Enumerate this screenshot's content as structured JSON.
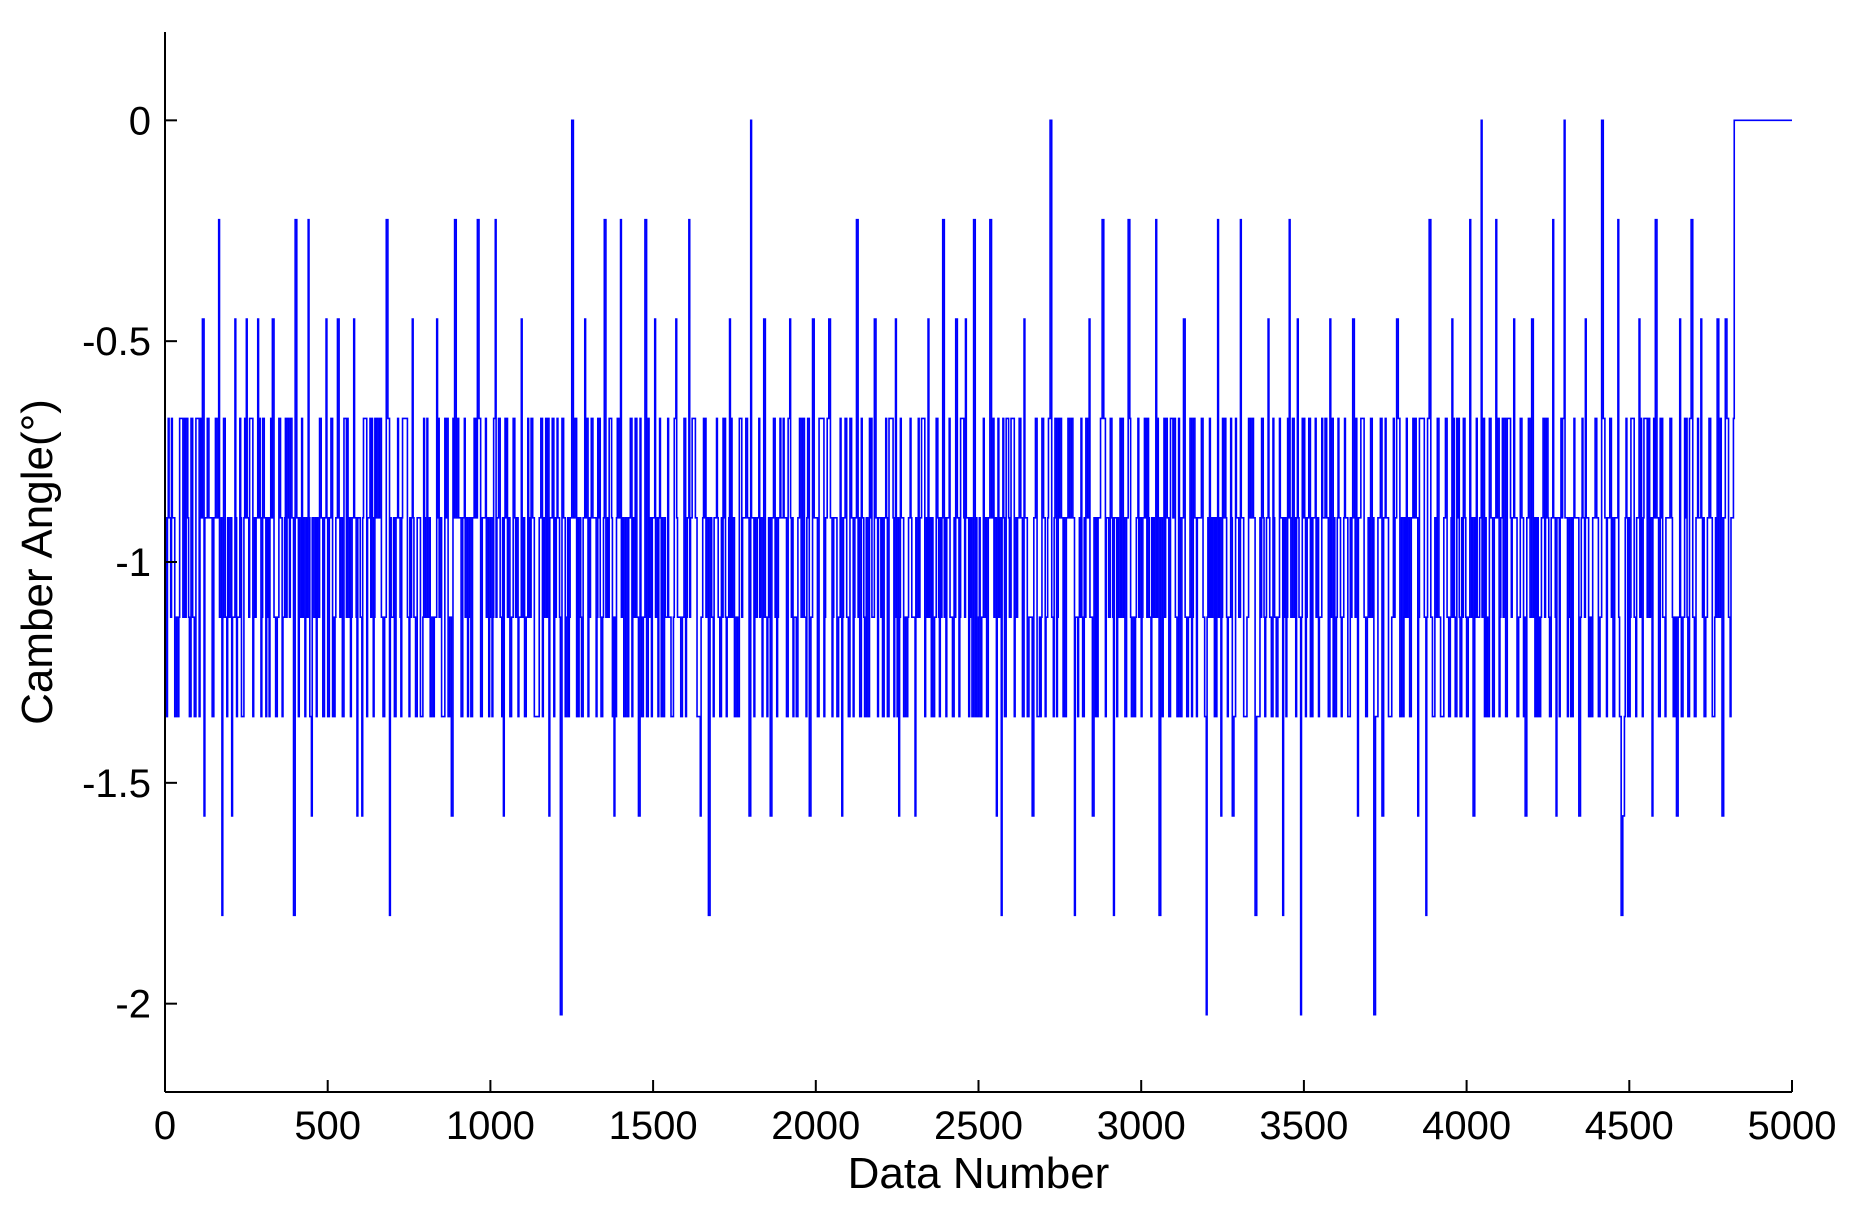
{
  "chart_data": {
    "type": "line",
    "title": "",
    "xlabel": "Data Number",
    "ylabel": "Camber Angle(°)",
    "xlim": [
      0,
      5000
    ],
    "ylim": [
      -2.2,
      0.2
    ],
    "xticks": [
      0,
      500,
      1000,
      1500,
      2000,
      2500,
      3000,
      3500,
      4000,
      4500,
      5000
    ],
    "yticks": [
      0,
      -0.5,
      -1,
      -1.5,
      -2
    ],
    "xtick_labels": [
      "0",
      "500",
      "1000",
      "1500",
      "2000",
      "2500",
      "3000",
      "3500",
      "4000",
      "4500",
      "5000"
    ],
    "ytick_labels": [
      "0",
      "-0.5",
      "-1",
      "-1.5",
      "-2"
    ],
    "grid": false,
    "legend": "none",
    "series": [
      {
        "color": "#0000ff",
        "sample_interval": 20,
        "levels": [
          0,
          -0.225,
          -0.45,
          -0.675,
          -0.9,
          -1.125,
          -1.35,
          -1.575,
          -1.8,
          -2.025
        ],
        "sampled_x": [
          0,
          20,
          40,
          60,
          80,
          100,
          120,
          140,
          160,
          180,
          200,
          220,
          240,
          260,
          280,
          300,
          320,
          340,
          360,
          380,
          400,
          420,
          440,
          460,
          480,
          500,
          520,
          540,
          560,
          580,
          600,
          620,
          640,
          660,
          680,
          700,
          720,
          740,
          760,
          780,
          800,
          820,
          840,
          860,
          880,
          900,
          920,
          940,
          960,
          980,
          1000,
          1020,
          1040,
          1060,
          1080,
          1100,
          1120,
          1140,
          1160,
          1180,
          1200,
          1220,
          1240,
          1260,
          1280,
          1300,
          1320,
          1340,
          1360,
          1380,
          1400,
          1420,
          1440,
          1460,
          1480,
          1500,
          1520,
          1540,
          1560,
          1580,
          1600,
          1620,
          1640,
          1660,
          1680,
          1700,
          1720,
          1740,
          1760,
          1780,
          1800,
          1820,
          1840,
          1860,
          1880,
          1900,
          1920,
          1940,
          1960,
          1980,
          2000,
          2020,
          2040,
          2060,
          2080,
          2100,
          2120,
          2140,
          2160,
          2180,
          2200,
          2220,
          2240,
          2260,
          2280,
          2300,
          2320,
          2340,
          2360,
          2380,
          2400,
          2420,
          2440,
          2460,
          2480,
          2500,
          2520,
          2540,
          2560,
          2580,
          2600,
          2620,
          2640,
          2660,
          2680,
          2700,
          2720,
          2740,
          2760,
          2780,
          2800,
          2820,
          2840,
          2860,
          2880,
          2900,
          2920,
          2940,
          2960,
          2980,
          3000,
          3020,
          3040,
          3060,
          3080,
          3100,
          3120,
          3140,
          3160,
          3180,
          3200,
          3220,
          3240,
          3260,
          3280,
          3300,
          3320,
          3340,
          3360,
          3380,
          3400,
          3420,
          3440,
          3460,
          3480,
          3500,
          3520,
          3540,
          3560,
          3580,
          3600,
          3620,
          3640,
          3660,
          3680,
          3700,
          3720,
          3740,
          3760,
          3780,
          3800,
          3820,
          3840,
          3860,
          3880,
          3900,
          3920,
          3940,
          3960,
          3980,
          4000,
          4020,
          4040,
          4060,
          4080,
          4100,
          4120,
          4140,
          4160,
          4180,
          4200,
          4220,
          4240,
          4260,
          4280,
          4300,
          4320,
          4340,
          4360,
          4380,
          4400,
          4420,
          4440,
          4460,
          4480,
          4500,
          4520,
          4540,
          4560,
          4580,
          4600,
          4620,
          4640,
          4660,
          4680,
          4700,
          4720,
          4740,
          4760,
          4780,
          4800,
          4820,
          4840,
          4860,
          4880,
          4900,
          4920,
          4940,
          4960,
          4980,
          5000
        ],
        "sampled_y_min": [
          -1.35,
          -1.35,
          -1.35,
          -1.35,
          -1.35,
          -1.35,
          -1.575,
          -1.35,
          -1.8,
          -1.35,
          -1.575,
          -1.35,
          -1.35,
          -1.35,
          -1.35,
          -1.35,
          -1.35,
          -1.35,
          -1.35,
          -1.8,
          -1.35,
          -1.35,
          -1.575,
          -1.35,
          -1.35,
          -1.35,
          -1.35,
          -1.35,
          -1.35,
          -1.575,
          -1.575,
          -1.35,
          -1.35,
          -1.35,
          -1.8,
          -1.35,
          -1.35,
          -1.35,
          -1.35,
          -1.35,
          -1.35,
          -1.35,
          -1.35,
          -1.35,
          -1.575,
          -1.35,
          -1.35,
          -1.35,
          -1.35,
          -1.35,
          -1.35,
          -1.35,
          -1.575,
          -1.35,
          -1.35,
          -1.35,
          -1.35,
          -1.35,
          -1.35,
          -1.575,
          -2.025,
          -1.35,
          -1.35,
          -1.35,
          -1.35,
          -1.35,
          -1.35,
          -1.35,
          -1.35,
          -1.575,
          -1.35,
          -1.35,
          -1.575,
          -1.35,
          -1.35,
          -1.35,
          -1.35,
          -1.35,
          -1.35,
          -1.35,
          -1.35,
          -1.35,
          -1.575,
          -1.8,
          -1.35,
          -1.35,
          -1.35,
          -1.35,
          -1.35,
          -1.575,
          -1.35,
          -1.35,
          -1.35,
          -1.575,
          -1.35,
          -1.35,
          -1.35,
          -1.35,
          -1.35,
          -1.575,
          -1.35,
          -1.35,
          -1.35,
          -1.35,
          -1.575,
          -1.35,
          -1.35,
          -1.35,
          -1.35,
          -1.35,
          -1.35,
          -1.35,
          -1.575,
          -1.35,
          -1.35,
          -1.575,
          -1.35,
          -1.35,
          -1.35,
          -1.35,
          -1.35,
          -1.35,
          -1.35,
          -1.35,
          -1.35,
          -1.35,
          -1.35,
          -1.575,
          -1.8,
          -1.35,
          -1.35,
          -1.35,
          -1.35,
          -1.575,
          -1.35,
          -1.35,
          -1.35,
          -1.35,
          -1.35,
          -1.8,
          -1.35,
          -1.35,
          -1.575,
          -1.35,
          -1.35,
          -1.8,
          -1.35,
          -1.35,
          -1.35,
          -1.35,
          -1.35,
          -1.35,
          -1.8,
          -1.35,
          -1.35,
          -1.35,
          -1.35,
          -1.35,
          -1.35,
          -1.35,
          -2.025,
          -1.35,
          -1.575,
          -1.35,
          -1.575,
          -1.35,
          -1.35,
          -1.8,
          -1.35,
          -1.35,
          -1.35,
          -1.8,
          -1.35,
          -1.35,
          -2.025,
          -1.35,
          -1.35,
          -1.35,
          -1.35,
          -1.35,
          -1.35,
          -1.35,
          -1.35,
          -1.575,
          -1.35,
          -2.025,
          -1.35,
          -1.575,
          -1.35,
          -1.35,
          -1.35,
          -1.35,
          -1.575,
          -1.8,
          -1.35,
          -1.35,
          -1.35,
          -1.35,
          -1.35,
          -1.35,
          -1.35,
          -1.575,
          -1.35,
          -1.35,
          -1.35,
          -1.35,
          -1.35,
          -1.35,
          -1.35,
          -1.575,
          -1.35,
          -1.35,
          -1.35,
          -1.575,
          -1.35,
          -1.35,
          -1.35,
          -1.575,
          -1.35,
          -1.35,
          -1.35,
          -1.35,
          -1.35,
          -1.8,
          -1.575,
          -1.35,
          -1.35,
          -1.35,
          -1.575,
          -1.35,
          -1.35,
          -1.35,
          -1.575,
          -1.35,
          -1.35,
          -1.35,
          -1.35,
          -1.35,
          -1.35,
          -1.575,
          -1.35
        ],
        "sampled_y_max": [
          -0.675,
          -0.675,
          -0.675,
          -0.675,
          -0.675,
          -0.45,
          -0.675,
          -0.675,
          -0.225,
          -0.675,
          -0.45,
          -0.675,
          -0.45,
          -0.675,
          -0.45,
          -0.675,
          -0.45,
          -0.675,
          -0.675,
          -0.675,
          -0.225,
          -0.675,
          -0.225,
          -0.675,
          -0.45,
          -0.675,
          -0.45,
          -0.675,
          -0.675,
          -0.45,
          -0.675,
          -0.675,
          -0.675,
          -0.675,
          -0.225,
          -0.675,
          -0.675,
          -0.675,
          -0.45,
          -0.675,
          -0.675,
          -0.45,
          -0.675,
          -0.675,
          -0.225,
          -0.675,
          -0.675,
          -0.675,
          -0.225,
          -0.675,
          -0.225,
          -0.675,
          -0.675,
          -0.675,
          -0.45,
          -0.675,
          -0.675,
          -0.675,
          -0.675,
          -0.675,
          -0.675,
          -0.675,
          0.0,
          -0.675,
          -0.45,
          -0.675,
          -0.675,
          -0.225,
          -0.675,
          -0.675,
          -0.225,
          -0.675,
          -0.675,
          -0.225,
          -0.675,
          -0.45,
          -0.675,
          -0.675,
          -0.45,
          -0.675,
          -0.225,
          -0.675,
          -0.675,
          -0.675,
          -0.675,
          -0.675,
          -0.45,
          -0.675,
          -0.675,
          -0.675,
          0.0,
          -0.675,
          -0.45,
          -0.675,
          -0.675,
          -0.675,
          -0.45,
          -0.675,
          -0.675,
          -0.45,
          -0.675,
          -0.675,
          -0.45,
          -0.675,
          -0.675,
          -0.675,
          -0.225,
          -0.675,
          -0.675,
          -0.45,
          -0.675,
          -0.675,
          -0.45,
          -0.675,
          -0.675,
          -0.675,
          -0.675,
          -0.45,
          -0.675,
          -0.225,
          -0.675,
          -0.45,
          -0.675,
          -0.45,
          -0.225,
          -0.675,
          -0.225,
          -0.675,
          -0.675,
          -0.675,
          -0.675,
          -0.675,
          -0.45,
          -0.675,
          -0.675,
          -0.675,
          0.0,
          -0.675,
          -0.675,
          -0.675,
          -0.675,
          -0.675,
          -0.45,
          -0.675,
          -0.225,
          -0.675,
          -0.675,
          -0.675,
          -0.225,
          -0.675,
          -0.675,
          -0.675,
          -0.225,
          -0.675,
          -0.675,
          -0.675,
          -0.45,
          -0.675,
          -0.675,
          -0.675,
          -0.675,
          -0.225,
          -0.675,
          -0.675,
          -0.675,
          -0.225,
          -0.675,
          -0.675,
          -0.675,
          -0.45,
          -0.675,
          -0.675,
          -0.225,
          -0.675,
          -0.45,
          -0.675,
          -0.675,
          -0.675,
          -0.675,
          -0.45,
          -0.675,
          -0.675,
          -0.45,
          -0.675,
          -0.675,
          -0.675,
          -0.675,
          -0.675,
          -0.675,
          -0.45,
          -0.675,
          -0.675,
          -0.675,
          -0.675,
          -0.225,
          -0.675,
          -0.675,
          -0.45,
          -0.675,
          -0.675,
          -0.225,
          -0.675,
          0.0,
          -0.675,
          -0.225,
          -0.675,
          -0.675,
          -0.45,
          -0.675,
          -0.675,
          -0.45,
          -0.675,
          -0.675,
          -0.225,
          -0.675,
          0.0,
          -0.675,
          -0.675,
          -0.45,
          -0.675,
          0.0,
          -0.675,
          -0.675,
          -0.225,
          -0.675,
          -0.675,
          -0.45,
          -0.675,
          -0.675,
          -0.225,
          -0.675,
          -0.675,
          -0.45,
          -0.675,
          -0.225,
          -0.675,
          -0.45,
          -0.675,
          -0.45,
          -0.45,
          -0.675,
          -0.675
        ]
      }
    ]
  }
}
